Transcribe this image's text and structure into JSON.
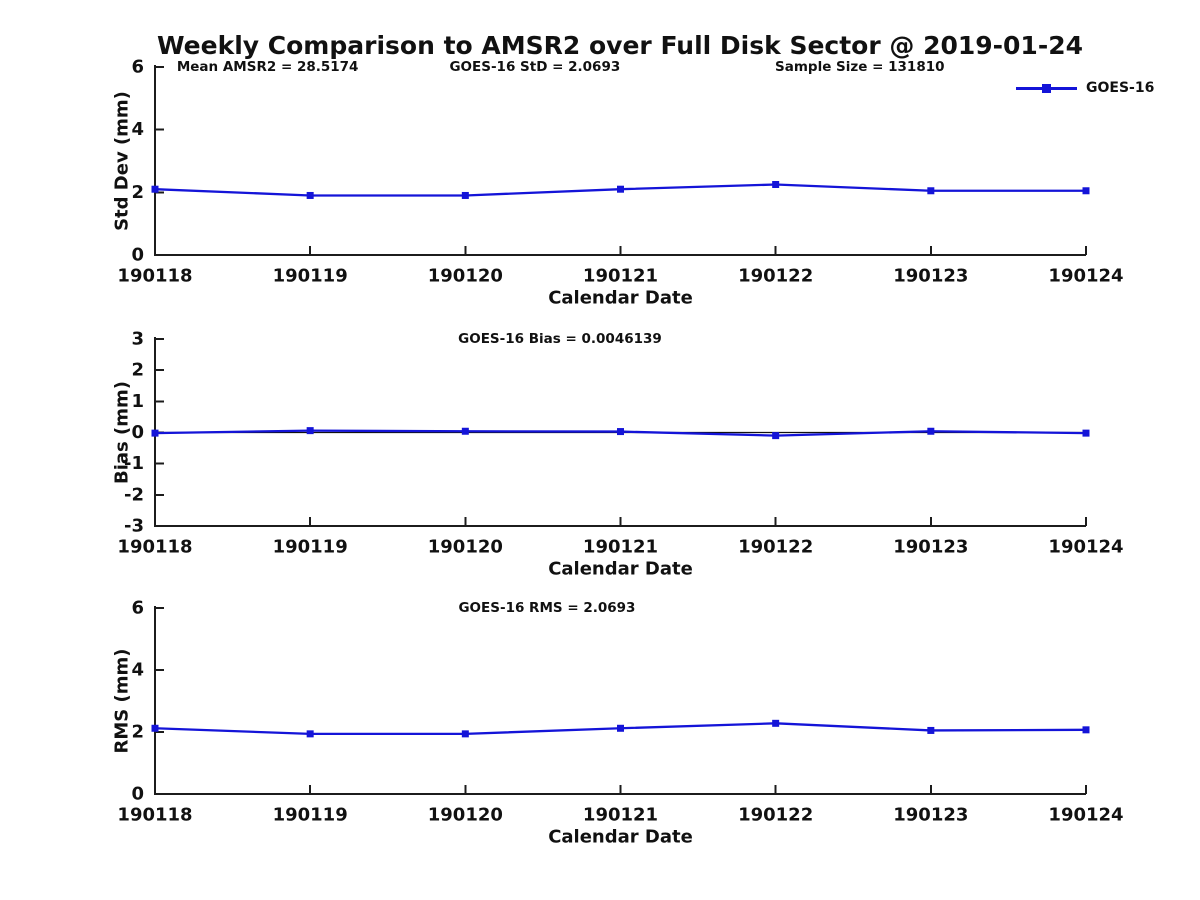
{
  "title": "Weekly Comparison to AMSR2 over Full Disk Sector @ 2019-01-24",
  "legend": {
    "label": "GOES-16"
  },
  "colors": {
    "series": "#1414d8",
    "axis": "#1c1c1c",
    "text": "#111111",
    "background": "#ffffff"
  },
  "x_axis": {
    "label": "Calendar Date",
    "categories": [
      "190118",
      "190119",
      "190120",
      "190121",
      "190122",
      "190123",
      "190124"
    ]
  },
  "chart_data": [
    {
      "type": "line",
      "name": "std-dev-panel",
      "ylabel": "Std Dev (mm)",
      "ylim": [
        0,
        6
      ],
      "yticks": [
        6,
        4,
        2,
        0
      ],
      "grid": false,
      "legend_position": "top-right-outside",
      "categories": [
        "190118",
        "190119",
        "190120",
        "190121",
        "190122",
        "190123",
        "190124"
      ],
      "series": [
        {
          "name": "GOES-16",
          "values": [
            2.1,
            1.9,
            1.9,
            2.1,
            2.25,
            2.05,
            2.05
          ]
        }
      ],
      "annotations": [
        {
          "text": "Mean AMSR2 = 28.5174",
          "cx": 0.121
        },
        {
          "text": "GOES-16 StD = 2.0693",
          "cx": 0.408
        },
        {
          "text": "Sample Size = 131810",
          "cx": 0.757
        }
      ],
      "xlabel": "Calendar Date"
    },
    {
      "type": "line",
      "name": "bias-panel",
      "ylabel": "Bias (mm)",
      "ylim": [
        -3,
        3
      ],
      "yticks": [
        3,
        2,
        1,
        0,
        -1,
        -2,
        -3
      ],
      "grid": false,
      "zero_line": true,
      "categories": [
        "190118",
        "190119",
        "190120",
        "190121",
        "190122",
        "190123",
        "190124"
      ],
      "series": [
        {
          "name": "GOES-16",
          "values": [
            -0.02,
            0.06,
            0.04,
            0.03,
            -0.1,
            0.04,
            -0.02
          ]
        }
      ],
      "annotations": [
        {
          "text": "GOES-16 Bias  = 0.0046139",
          "cx": 0.435
        }
      ],
      "xlabel": "Calendar Date"
    },
    {
      "type": "line",
      "name": "rms-panel",
      "ylabel": "RMS (mm)",
      "ylim": [
        0,
        6
      ],
      "yticks": [
        6,
        4,
        2,
        0
      ],
      "grid": false,
      "categories": [
        "190118",
        "190119",
        "190120",
        "190121",
        "190122",
        "190123",
        "190124"
      ],
      "series": [
        {
          "name": "GOES-16",
          "values": [
            2.12,
            1.94,
            1.94,
            2.12,
            2.28,
            2.05,
            2.07
          ]
        }
      ],
      "annotations": [
        {
          "text": "GOES-16 RMS = 2.0693",
          "cx": 0.421
        }
      ],
      "xlabel": "Calendar Date"
    }
  ]
}
